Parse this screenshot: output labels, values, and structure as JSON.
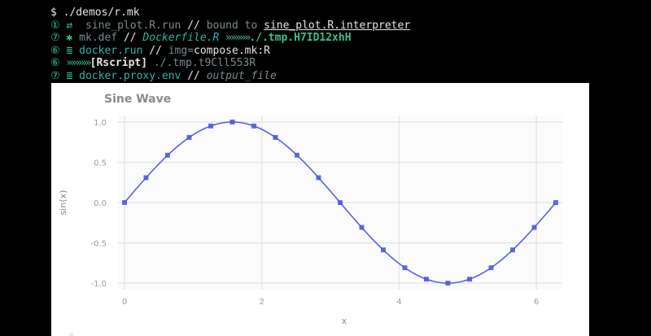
{
  "terminal": {
    "prompt": "$",
    "command": "./demos/r.mk",
    "lines": [
      {
        "num": "①",
        "icon": "⇄",
        "target": "sine_plot.R.run",
        "sep": "//",
        "text1": "bound to",
        "text2": "sine_plot.R.interpreter"
      },
      {
        "num": "⑦",
        "icon": "✱",
        "target": "mk.def",
        "sep": "//",
        "text1": "Dockerfile.R",
        "arrows": "»»»»»",
        "text2": "./.tmp.H7ID12xhH"
      },
      {
        "num": "⑥",
        "icon": "≣",
        "target": "docker.run",
        "sep": "//",
        "text1": "img=",
        "text2": "compose.mk:R"
      },
      {
        "num": "⑥",
        "icon": "",
        "arrows": "»»»»»",
        "text1": "[Rscript]",
        "text2": "./.tmp.t9Cll553R"
      },
      {
        "num": "⑦",
        "icon": "≣",
        "target": "docker.proxy.env",
        "sep": "//",
        "text1": "output_file"
      }
    ]
  },
  "plot": {
    "title": "Sine Wave",
    "chart_data": {
      "type": "line",
      "title": "Sine Wave",
      "xlabel": "x",
      "ylabel": "sin(x)",
      "xlim": [
        0,
        6.2832
      ],
      "ylim": [
        -1,
        1
      ],
      "x_ticks": [
        "0",
        "2",
        "4",
        "6"
      ],
      "y_ticks": [
        "-1.0",
        "-0.5",
        "0.0",
        "0.5",
        "1.0"
      ],
      "series": [
        {
          "values_fn": "sin",
          "x": [
            0.0,
            0.314,
            0.628,
            0.942,
            1.257,
            1.571,
            1.885,
            2.199,
            2.513,
            2.827,
            3.142,
            3.456,
            3.77,
            4.084,
            4.398,
            4.712,
            5.027,
            5.341,
            5.655,
            5.969,
            6.283
          ],
          "y": [
            0.0,
            0.309,
            0.588,
            0.809,
            0.951,
            1.0,
            0.951,
            0.809,
            0.588,
            0.309,
            0.0,
            -0.309,
            -0.588,
            -0.809,
            -0.951,
            -1.0,
            -0.951,
            -0.809,
            -0.588,
            -0.309,
            0.0
          ],
          "color": "#4a55e0"
        }
      ],
      "grid": true
    }
  }
}
